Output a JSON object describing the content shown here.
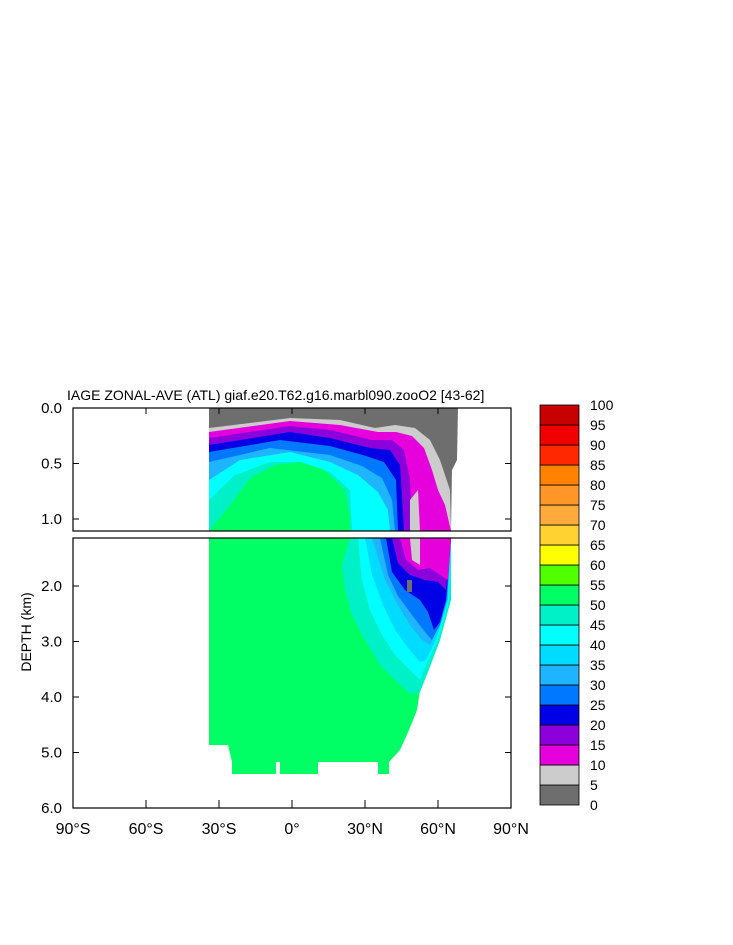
{
  "chart_data": {
    "type": "heatmap",
    "title": "IAGE ZONAL-AVE (ATL) giaf.e20.T62.g16.marbl090.zooO2 [43-62]",
    "xlabel": "",
    "ylabel": "DEPTH (km)",
    "x_ticks": [
      {
        "value": -90,
        "label": "90°S"
      },
      {
        "value": -60,
        "label": "60°S"
      },
      {
        "value": -30,
        "label": "30°S"
      },
      {
        "value": 0,
        "label": "0°"
      },
      {
        "value": 30,
        "label": "30°N"
      },
      {
        "value": 60,
        "label": "60°N"
      },
      {
        "value": 90,
        "label": "90°N"
      }
    ],
    "upper_panel": {
      "ylim": [
        0.0,
        1.2
      ],
      "y_ticks": [
        {
          "value": 0.0,
          "label": "0.0"
        },
        {
          "value": 0.5,
          "label": "0.5"
        },
        {
          "value": 1.0,
          "label": "1.0"
        }
      ]
    },
    "lower_panel": {
      "ylim": [
        1.2,
        6.0
      ],
      "y_ticks": [
        {
          "value": 2.0,
          "label": "2.0"
        },
        {
          "value": 3.0,
          "label": "3.0"
        },
        {
          "value": 4.0,
          "label": "4.0"
        },
        {
          "value": 5.0,
          "label": "5.0"
        },
        {
          "value": 6.0,
          "label": "6.0"
        }
      ]
    },
    "colorbar": {
      "levels": [
        {
          "label": "0",
          "color": "#6e6e6e"
        },
        {
          "label": "5",
          "color": "#cccccc"
        },
        {
          "label": "10",
          "color": "#e600dc"
        },
        {
          "label": "15",
          "color": "#8c00dc"
        },
        {
          "label": "20",
          "color": "#0000e6"
        },
        {
          "label": "25",
          "color": "#0078ff"
        },
        {
          "label": "30",
          "color": "#1eb4ff"
        },
        {
          "label": "35",
          "color": "#00dcff"
        },
        {
          "label": "40",
          "color": "#00ffff"
        },
        {
          "label": "45",
          "color": "#00f0c8"
        },
        {
          "label": "50",
          "color": "#00ff64"
        },
        {
          "label": "55",
          "color": "#50ff00"
        },
        {
          "label": "60",
          "color": "#ffff00"
        },
        {
          "label": "65",
          "color": "#ffd232"
        },
        {
          "label": "70",
          "color": "#ffaa3c"
        },
        {
          "label": "75",
          "color": "#ff9628"
        },
        {
          "label": "80",
          "color": "#ff8200"
        },
        {
          "label": "85",
          "color": "#ff2800"
        },
        {
          "label": "90",
          "color": "#f00000"
        },
        {
          "label": "95",
          "color": "#c80000"
        },
        {
          "label": "100",
          "color": ""
        }
      ]
    }
  }
}
